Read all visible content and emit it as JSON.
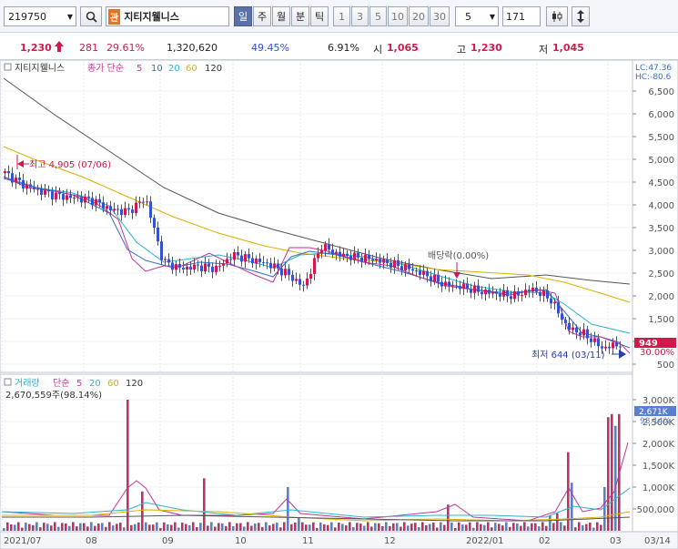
{
  "toolbar": {
    "code": "219750",
    "badge": "관",
    "name": "지티지웰니스",
    "periods": [
      "일",
      "주",
      "월",
      "분",
      "틱"
    ],
    "minutes": [
      "1",
      "3",
      "5",
      "10",
      "20",
      "30"
    ],
    "interval": "5",
    "count": "171"
  },
  "quote": {
    "price": "1,230",
    "change": "281",
    "rate": "29.61%",
    "volume": "1,320,620",
    "vol_ratio": "49.45%",
    "turnover": "6.91%",
    "open_label": "시",
    "open": "1,065",
    "high_label": "고",
    "high": "1,230",
    "low_label": "저",
    "low": "1,045"
  },
  "price_pane": {
    "legend_name": "지티지웰니스",
    "legend_ma": "종가 단순",
    "periods": [
      "5",
      "10",
      "20",
      "60",
      "120"
    ],
    "lc": "LC:47.36",
    "hc": "HC:-80.6",
    "y_ticks": [
      "6,500",
      "6,000",
      "5,500",
      "5,000",
      "4,500",
      "4,000",
      "3,500",
      "3,000",
      "2,500",
      "2,000",
      "1,500",
      "1,000",
      "500"
    ],
    "high_note": "최고 4,905 (07/06)",
    "low_note": "최저 644 (03/11)",
    "dividend_note": "배당락(0.00%)",
    "last_price": "949",
    "last_rate": "30.00%"
  },
  "volume_pane": {
    "legend_name": "거래량",
    "legend_ma": "단순",
    "periods": [
      "5",
      "20",
      "60",
      "120"
    ],
    "value": "2,670,559주(98.14%)",
    "y_ticks": [
      "3,000K",
      "2,500K",
      "2,000K",
      "1,500K",
      "1,000K",
      "500,000"
    ],
    "last_vol": "2,671K",
    "last_pct": "98.14%"
  },
  "x_labels": [
    "2021/07",
    "08",
    "09",
    "10",
    "11",
    "12",
    "2022/01",
    "02",
    "03",
    "03/14"
  ],
  "colors": {
    "up": "#d0184b",
    "down": "#3252d0",
    "ma5": "#c0369a",
    "ma10": "#3a6fc4",
    "ma20": "#2bb3cf",
    "ma60": "#e0b000",
    "ma120": "#555555",
    "vol_up": "#c2306b",
    "vol_down": "#5a7fd0"
  },
  "chart_data": {
    "type": "candlestick",
    "price_series": [
      {
        "date": "2021/07",
        "close": 4700
      },
      {
        "date": "2021/07",
        "close": 4450
      },
      {
        "date": "2021/07",
        "close": 4300
      },
      {
        "date": "2021/07",
        "close": 4200
      },
      {
        "date": "2021/07",
        "close": 4150
      },
      {
        "date": "2021/08",
        "close": 4100
      },
      {
        "date": "2021/08",
        "close": 3900
      },
      {
        "date": "2021/08",
        "close": 3850
      },
      {
        "date": "2021/08",
        "close": 4150
      },
      {
        "date": "2021/08",
        "close": 2750
      },
      {
        "date": "2021/08",
        "close": 2600
      },
      {
        "date": "2021/09",
        "close": 2650
      },
      {
        "date": "2021/09",
        "close": 2600
      },
      {
        "date": "2021/09",
        "close": 2900
      },
      {
        "date": "2021/09",
        "close": 2800
      },
      {
        "date": "2021/10",
        "close": 2700
      },
      {
        "date": "2021/10",
        "close": 2500
      },
      {
        "date": "2021/10",
        "close": 2200
      },
      {
        "date": "2021/10",
        "close": 3100
      },
      {
        "date": "2021/11",
        "close": 2900
      },
      {
        "date": "2021/11",
        "close": 2850
      },
      {
        "date": "2021/11",
        "close": 2800
      },
      {
        "date": "2021/11",
        "close": 2700
      },
      {
        "date": "2021/12",
        "close": 2600
      },
      {
        "date": "2021/12",
        "close": 2450
      },
      {
        "date": "2021/12",
        "close": 2250
      },
      {
        "date": "2022/01",
        "close": 2200
      },
      {
        "date": "2022/01",
        "close": 2100
      },
      {
        "date": "2022/01",
        "close": 2050
      },
      {
        "date": "2022/01",
        "close": 2000
      },
      {
        "date": "2022/02",
        "close": 2150
      },
      {
        "date": "2022/02",
        "close": 1950
      },
      {
        "date": "2022/02",
        "close": 1300
      },
      {
        "date": "2022/03",
        "close": 1150
      },
      {
        "date": "2022/03",
        "close": 850
      },
      {
        "date": "2022/03",
        "close": 949
      }
    ],
    "volume_peaks": [
      {
        "date": "2021/08",
        "volume": 3000000
      },
      {
        "date": "2021/10",
        "volume": 1000000
      },
      {
        "date": "2022/02",
        "volume": 1800000
      },
      {
        "date": "2022/03",
        "volume": 2670559
      }
    ],
    "y_range": [
      500,
      6500
    ],
    "volume_range": [
      0,
      3000000
    ]
  }
}
